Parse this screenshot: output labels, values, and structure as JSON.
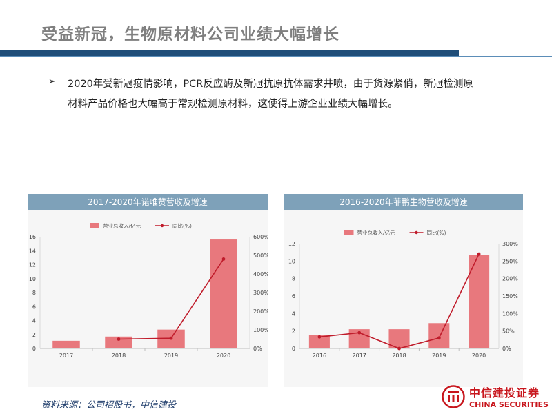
{
  "slide": {
    "title": "受益新冠，生物原材料公司业绩大幅增长",
    "bullet_marker": "➢",
    "bullet_text": "2020年受新冠疫情影响，PCR反应酶及新冠抗原抗体需求井喷，由于货源紧俏，新冠检测原材料产品价格也大幅高于常规检测原材料，这使得上游企业业绩大幅增长。"
  },
  "charts": {
    "left_header": "2017-2020年诺唯赞营收及增速",
    "right_header": "2016-2020年菲鹏生物营收及增速"
  },
  "chart_data": [
    {
      "type": "bar",
      "title": "2017-2020年诺唯赞营收及增速",
      "categories": [
        "2017",
        "2018",
        "2019",
        "2020"
      ],
      "series": [
        {
          "name": "营业总收入/亿元",
          "type": "bar",
          "axis": "left",
          "color": "#e8787d",
          "values": [
            1.1,
            1.7,
            2.7,
            15.6
          ]
        },
        {
          "name": "同比(%)",
          "type": "line",
          "axis": "right",
          "color": "#c01c2b",
          "values": [
            null,
            50,
            55,
            480
          ]
        }
      ],
      "y_left": {
        "min": 0,
        "max": 16,
        "ticks": [
          "0",
          "2",
          "4",
          "6",
          "8",
          "10",
          "12",
          "14",
          "16"
        ]
      },
      "y_right": {
        "min": 0,
        "max": 600,
        "ticks": [
          "0%",
          "100%",
          "200%",
          "300%",
          "400%",
          "500%",
          "600%"
        ]
      },
      "legend": "top-center",
      "grid": false
    },
    {
      "type": "bar",
      "title": "2016-2020年菲鹏生物营收及增速",
      "categories": [
        "2016",
        "2017",
        "2018",
        "2019",
        "2020"
      ],
      "series": [
        {
          "name": "营业总收入/亿元",
          "type": "bar",
          "axis": "left",
          "color": "#e8787d",
          "values": [
            1.5,
            2.2,
            2.2,
            2.9,
            10.7
          ]
        },
        {
          "name": "同比(%)",
          "type": "line",
          "axis": "right",
          "color": "#c01c2b",
          "values": [
            33,
            45,
            0,
            30,
            270
          ]
        }
      ],
      "y_left": {
        "min": 0,
        "max": 12,
        "ticks": [
          "0",
          "2",
          "4",
          "6",
          "8",
          "10",
          "12"
        ]
      },
      "y_right": {
        "min": 0,
        "max": 300,
        "ticks": [
          "0%",
          "50%",
          "100%",
          "150%",
          "200%",
          "250%",
          "300%"
        ]
      },
      "legend": "top-center",
      "grid": false
    }
  ],
  "footer": {
    "source": "资料来源：公司招股书，中信建投",
    "logo_cn": "中信建投证券",
    "logo_en": "CHINA SECURITIES"
  },
  "colors": {
    "title_gray": "#7f7f7f",
    "bar_navy": "#1f4e79",
    "header_blue": "#7ea1b9",
    "brand_red": "#c8161d"
  }
}
